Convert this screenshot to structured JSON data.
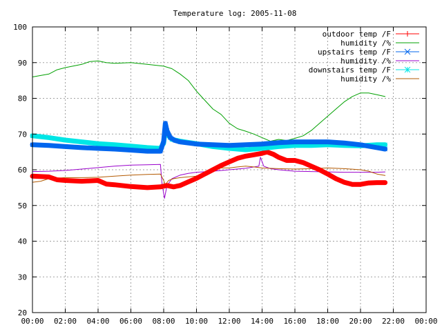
{
  "chart_data": {
    "type": "line",
    "title": "Temperature log: 2005-11-08",
    "xlabel": "",
    "ylabel": "",
    "xlim": [
      0,
      24
    ],
    "ylim": [
      20,
      100
    ],
    "grid": true,
    "legend_position": "top-right",
    "x_ticks": [
      "00:00",
      "02:00",
      "04:00",
      "06:00",
      "08:00",
      "10:00",
      "12:00",
      "14:00",
      "16:00",
      "18:00",
      "20:00",
      "22:00",
      "00:00"
    ],
    "y_ticks": [
      "20",
      "30",
      "40",
      "50",
      "60",
      "70",
      "80",
      "90",
      "100"
    ],
    "series": [
      {
        "name": "outdoor temp /F",
        "color": "#ff0000",
        "marker": "plus",
        "points": [
          [
            0,
            58.2
          ],
          [
            1,
            58.0
          ],
          [
            1.5,
            57.2
          ],
          [
            2,
            57.0
          ],
          [
            3,
            56.8
          ],
          [
            4,
            57.0
          ],
          [
            4.5,
            56.0
          ],
          [
            5,
            55.8
          ],
          [
            6,
            55.3
          ],
          [
            7,
            55.0
          ],
          [
            7.8,
            55.2
          ],
          [
            8.2,
            55.6
          ],
          [
            8.6,
            55.2
          ],
          [
            9,
            55.6
          ],
          [
            9.5,
            56.6
          ],
          [
            10,
            57.6
          ],
          [
            10.5,
            58.8
          ],
          [
            11,
            60.0
          ],
          [
            11.5,
            61.2
          ],
          [
            12,
            62.2
          ],
          [
            12.5,
            63.2
          ],
          [
            13,
            63.8
          ],
          [
            13.5,
            64.2
          ],
          [
            14,
            64.6
          ],
          [
            14.3,
            65.0
          ],
          [
            14.7,
            64.3
          ],
          [
            15,
            63.5
          ],
          [
            15.5,
            62.6
          ],
          [
            16,
            62.6
          ],
          [
            16.5,
            62.0
          ],
          [
            17,
            61.0
          ],
          [
            17.5,
            60.0
          ],
          [
            18,
            58.8
          ],
          [
            18.5,
            57.5
          ],
          [
            19,
            56.5
          ],
          [
            19.5,
            55.9
          ],
          [
            20,
            55.9
          ],
          [
            20.5,
            56.3
          ],
          [
            21,
            56.4
          ],
          [
            21.5,
            56.4
          ]
        ]
      },
      {
        "name": "humidity /%",
        "color": "#00a000",
        "marker": "none",
        "points": [
          [
            0,
            86.0
          ],
          [
            1,
            86.8
          ],
          [
            1.5,
            88.0
          ],
          [
            2,
            88.6
          ],
          [
            3,
            89.5
          ],
          [
            3.5,
            90.3
          ],
          [
            4,
            90.5
          ],
          [
            4.5,
            90.0
          ],
          [
            5,
            89.8
          ],
          [
            6,
            90.0
          ],
          [
            7,
            89.5
          ],
          [
            8,
            89.0
          ],
          [
            8.5,
            88.3
          ],
          [
            9,
            86.8
          ],
          [
            9.5,
            85.0
          ],
          [
            10,
            82.0
          ],
          [
            10.5,
            79.5
          ],
          [
            11,
            77.0
          ],
          [
            11.5,
            75.5
          ],
          [
            12,
            73.0
          ],
          [
            12.5,
            71.5
          ],
          [
            13,
            70.8
          ],
          [
            13.5,
            70.0
          ],
          [
            14,
            69.0
          ],
          [
            14.5,
            68.0
          ],
          [
            15,
            68.5
          ],
          [
            15.5,
            68.2
          ],
          [
            16,
            68.8
          ],
          [
            16.5,
            69.5
          ],
          [
            17,
            71.0
          ],
          [
            17.5,
            73.0
          ],
          [
            18,
            75.0
          ],
          [
            18.5,
            77.0
          ],
          [
            19,
            79.0
          ],
          [
            19.5,
            80.5
          ],
          [
            20,
            81.5
          ],
          [
            20.5,
            81.5
          ],
          [
            21,
            81.0
          ],
          [
            21.5,
            80.5
          ]
        ]
      },
      {
        "name": "upstairs temp /F",
        "color": "#0066ee",
        "marker": "cross",
        "points": [
          [
            0,
            67.0
          ],
          [
            1,
            66.8
          ],
          [
            2,
            66.5
          ],
          [
            3,
            66.2
          ],
          [
            4,
            66.0
          ],
          [
            5,
            65.8
          ],
          [
            6,
            65.5
          ],
          [
            7,
            65.2
          ],
          [
            7.8,
            65.2
          ],
          [
            8.0,
            68.0
          ],
          [
            8.1,
            73.0
          ],
          [
            8.2,
            71.0
          ],
          [
            8.4,
            69.0
          ],
          [
            8.7,
            68.2
          ],
          [
            9,
            67.8
          ],
          [
            10,
            67.2
          ],
          [
            11,
            67.0
          ],
          [
            12,
            66.8
          ],
          [
            13,
            67.0
          ],
          [
            14,
            67.2
          ],
          [
            15,
            67.6
          ],
          [
            16,
            67.8
          ],
          [
            17,
            67.8
          ],
          [
            18,
            67.8
          ],
          [
            19,
            67.5
          ],
          [
            20,
            67.0
          ],
          [
            21,
            66.2
          ],
          [
            21.5,
            65.8
          ]
        ]
      },
      {
        "name": "humidity /%",
        "color": "#9900cc",
        "marker": "none",
        "points": [
          [
            0,
            59.5
          ],
          [
            1,
            59.6
          ],
          [
            2,
            59.8
          ],
          [
            3,
            60.2
          ],
          [
            4,
            60.6
          ],
          [
            5,
            61.0
          ],
          [
            6,
            61.3
          ],
          [
            7,
            61.4
          ],
          [
            7.8,
            61.5
          ],
          [
            7.9,
            56.0
          ],
          [
            8.05,
            52.0
          ],
          [
            8.2,
            55.5
          ],
          [
            8.5,
            57.5
          ],
          [
            9,
            58.5
          ],
          [
            9.5,
            59.0
          ],
          [
            10,
            59.3
          ],
          [
            11,
            59.6
          ],
          [
            12,
            60.0
          ],
          [
            13,
            60.4
          ],
          [
            13.8,
            61.0
          ],
          [
            13.9,
            63.5
          ],
          [
            14.1,
            61.0
          ],
          [
            14.5,
            60.3
          ],
          [
            15,
            60.0
          ],
          [
            16,
            59.6
          ],
          [
            17,
            59.5
          ],
          [
            18,
            59.4
          ],
          [
            19,
            59.3
          ],
          [
            20,
            59.3
          ],
          [
            21,
            59.3
          ],
          [
            21.5,
            59.4
          ]
        ]
      },
      {
        "name": "downstairs temp /F",
        "color": "#00e6e6",
        "marker": "star",
        "points": [
          [
            0,
            69.5
          ],
          [
            1,
            69.0
          ],
          [
            2,
            68.3
          ],
          [
            3,
            67.8
          ],
          [
            4,
            67.3
          ],
          [
            5,
            67.0
          ],
          [
            6,
            66.6
          ],
          [
            7,
            66.2
          ],
          [
            7.8,
            66.0
          ],
          [
            8.0,
            67.5
          ],
          [
            8.1,
            71.5
          ],
          [
            8.2,
            70.0
          ],
          [
            8.5,
            68.5
          ],
          [
            9,
            68.0
          ],
          [
            10,
            67.3
          ],
          [
            11,
            66.5
          ],
          [
            12,
            66.0
          ],
          [
            13,
            65.6
          ],
          [
            14,
            66.0
          ],
          [
            15,
            66.5
          ],
          [
            16,
            66.8
          ],
          [
            17,
            66.8
          ],
          [
            18,
            67.0
          ],
          [
            19,
            66.8
          ],
          [
            20,
            66.7
          ],
          [
            21,
            67.0
          ],
          [
            21.5,
            67.0
          ]
        ]
      },
      {
        "name": "humidity /%",
        "color": "#b35900",
        "marker": "none",
        "points": [
          [
            0,
            56.5
          ],
          [
            0.5,
            56.8
          ],
          [
            1,
            57.5
          ],
          [
            2,
            57.8
          ],
          [
            3,
            57.8
          ],
          [
            4,
            57.9
          ],
          [
            5,
            58.2
          ],
          [
            6,
            58.5
          ],
          [
            7,
            58.7
          ],
          [
            7.8,
            58.8
          ],
          [
            8.0,
            57.0
          ],
          [
            8.1,
            55.8
          ],
          [
            8.3,
            57.0
          ],
          [
            8.6,
            57.5
          ],
          [
            9,
            57.8
          ],
          [
            10,
            58.2
          ],
          [
            10.5,
            58.8
          ],
          [
            11,
            59.8
          ],
          [
            11.5,
            60.5
          ],
          [
            12,
            60.5
          ],
          [
            12.5,
            60.8
          ],
          [
            13,
            61.0
          ],
          [
            13.5,
            60.8
          ],
          [
            14,
            60.5
          ],
          [
            15,
            60.3
          ],
          [
            16,
            60.2
          ],
          [
            17,
            60.3
          ],
          [
            18,
            60.5
          ],
          [
            19,
            60.3
          ],
          [
            20,
            60.0
          ],
          [
            20.5,
            59.6
          ],
          [
            21,
            58.8
          ],
          [
            21.5,
            58.4
          ]
        ]
      }
    ]
  }
}
